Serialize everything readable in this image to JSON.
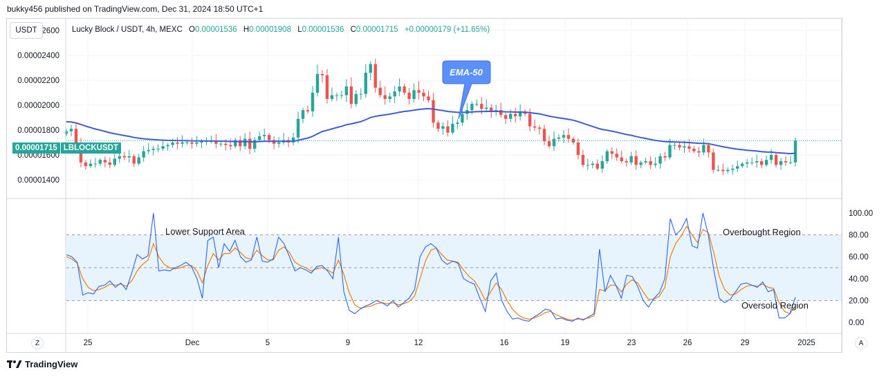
{
  "header": {
    "published": "bukky456 published on TradingView.com, Dec 31, 2024 18:50 UTC+1"
  },
  "unit": "USDT",
  "legend": {
    "title": "Lucky Block / USDT, 4h, MEXC",
    "o_label": "O",
    "o": "0.00001536",
    "h_label": "H",
    "h": "0.00001908",
    "l_label": "L",
    "l": "0.00001536",
    "c_label": "C",
    "c": "0.00001715",
    "change": "+0.00000179 (+11.65%)"
  },
  "last_price": {
    "value": "0.00001715",
    "symbol": "LBLOCKUSDT"
  },
  "annotations": {
    "ema": "EMA-50",
    "lower_support": "Lower Support Area",
    "overbought": "Overbought Region",
    "oversold": "Oversold Region"
  },
  "footer": {
    "brand": "TradingView"
  },
  "buttons": {
    "left": "Z",
    "right": "A"
  },
  "colors": {
    "up": "#26a69a",
    "down": "#ef5350",
    "ema": "#2962ff",
    "rsi": "#2962ff",
    "rsi_ma": "#f57c00",
    "band": "#e3f2fd",
    "callout": "#5b8ff9"
  },
  "chart_data": [
    {
      "type": "candlestick",
      "title": "Lucky Block / USDT, 4h, MEXC",
      "x_ticks": [
        "25",
        "Dec",
        "5",
        "9",
        "12",
        "16",
        "19",
        "23",
        "26",
        "29",
        "2025"
      ],
      "y_ticks": [
        "0.00002600",
        "0.00002400",
        "0.00002200",
        "0.00002000",
        "0.00001800",
        "0.00001600",
        "0.00001400"
      ],
      "ylim": [
        1.25e-05,
        2.7e-05
      ],
      "last_close": 1.715e-05,
      "close": [
        1.79e-05,
        1.81e-05,
        1.68e-05,
        1.54e-05,
        1.51e-05,
        1.53e-05,
        1.53e-05,
        1.56e-05,
        1.54e-05,
        1.52e-05,
        1.57e-05,
        1.59e-05,
        1.58e-05,
        1.59e-05,
        1.53e-05,
        1.58e-05,
        1.63e-05,
        1.64e-05,
        1.65e-05,
        1.65e-05,
        1.67e-05,
        1.68e-05,
        1.7e-05,
        1.69e-05,
        1.7e-05,
        1.7e-05,
        1.69e-05,
        1.7e-05,
        1.71e-05,
        1.71e-05,
        1.71e-05,
        1.69e-05,
        1.69e-05,
        1.68e-05,
        1.67e-05,
        1.72e-05,
        1.67e-05,
        1.73e-05,
        1.65e-05,
        1.72e-05,
        1.75e-05,
        1.76e-05,
        1.72e-05,
        1.69e-05,
        1.7e-05,
        1.72e-05,
        1.7e-05,
        1.74e-05,
        1.89e-05,
        1.96e-05,
        1.95e-05,
        2.1e-05,
        2.25e-05,
        2.24e-05,
        2.05e-05,
        2.08e-05,
        2.08e-05,
        2.08e-05,
        2.15e-05,
        2.01e-05,
        2.09e-05,
        2.09e-05,
        2.26e-05,
        2.33e-05,
        2.14e-05,
        2.08e-05,
        2.05e-05,
        2.07e-05,
        2.11e-05,
        2.15e-05,
        2.1e-05,
        2.05e-05,
        2.12e-05,
        2.1e-05,
        2.07e-05,
        2.04e-05,
        1.86e-05,
        1.81e-05,
        1.83e-05,
        1.78e-05,
        1.85e-05,
        1.86e-05,
        1.93e-05,
        1.96e-05,
        2.01e-05,
        2.01e-05,
        1.97e-05,
        1.98e-05,
        1.95e-05,
        1.96e-05,
        1.92e-05,
        1.89e-05,
        1.93e-05,
        1.91e-05,
        1.94e-05,
        1.93e-05,
        1.83e-05,
        1.82e-05,
        1.81e-05,
        1.71e-05,
        1.67e-05,
        1.73e-05,
        1.74e-05,
        1.76e-05,
        1.73e-05,
        1.7e-05,
        1.6e-05,
        1.52e-05,
        1.52e-05,
        1.53e-05,
        1.49e-05,
        1.55e-05,
        1.63e-05,
        1.61e-05,
        1.58e-05,
        1.55e-05,
        1.54e-05,
        1.59e-05,
        1.52e-05,
        1.54e-05,
        1.55e-05,
        1.52e-05,
        1.53e-05,
        1.59e-05,
        1.58e-05,
        1.68e-05,
        1.68e-05,
        1.66e-05,
        1.67e-05,
        1.65e-05,
        1.63e-05,
        1.62e-05,
        1.68e-05,
        1.62e-05,
        1.48e-05,
        1.48e-05,
        1.47e-05,
        1.48e-05,
        1.49e-05,
        1.51e-05,
        1.53e-05,
        1.54e-05,
        1.54e-05,
        1.55e-05,
        1.52e-05,
        1.56e-05,
        1.6e-05,
        1.52e-05,
        1.55e-05,
        1.54e-05,
        1.54e-05,
        1.715e-05
      ],
      "ema_label": "EMA-50"
    },
    {
      "type": "line",
      "title": "",
      "series": [
        {
          "values": [
            62,
            60,
            55,
            25,
            27,
            26,
            33,
            34,
            38,
            32,
            36,
            30,
            45,
            62,
            58,
            61,
            100,
            47,
            48,
            47,
            50,
            52,
            55,
            51,
            40,
            22,
            75,
            78,
            50,
            72,
            65,
            75,
            60,
            55,
            57,
            78,
            56,
            55,
            58,
            78,
            72,
            60,
            47,
            50,
            48,
            45,
            51,
            52,
            47,
            40,
            78,
            28,
            11,
            8,
            12,
            15,
            17,
            20,
            18,
            15,
            20,
            14,
            18,
            22,
            30,
            60,
            69,
            72,
            68,
            57,
            53,
            56,
            54,
            40,
            37,
            35,
            22,
            10,
            38,
            45,
            20,
            10,
            3,
            4,
            2,
            1,
            5,
            8,
            12,
            11,
            3,
            4,
            2,
            1,
            4,
            2,
            5,
            8,
            67,
            28,
            43,
            34,
            22,
            43,
            42,
            33,
            20,
            14,
            22,
            27,
            40,
            95,
            80,
            85,
            95,
            70,
            68,
            100,
            80,
            48,
            22,
            18,
            21,
            28,
            35,
            36,
            34,
            32,
            37,
            28,
            30,
            4,
            4,
            8,
            23
          ]
        },
        {
          "values": [
            60,
            58,
            54,
            40,
            32,
            29,
            30,
            32,
            35,
            34,
            35,
            33,
            38,
            47,
            53,
            57,
            72,
            60,
            53,
            50,
            49,
            50,
            52,
            52,
            47,
            36,
            52,
            63,
            57,
            63,
            63,
            68,
            64,
            59,
            58,
            66,
            61,
            57,
            57,
            66,
            69,
            64,
            55,
            52,
            50,
            47,
            49,
            50,
            48,
            45,
            57,
            44,
            27,
            16,
            13,
            14,
            15,
            17,
            18,
            17,
            18,
            16,
            17,
            19,
            24,
            40,
            56,
            66,
            68,
            62,
            57,
            56,
            55,
            48,
            42,
            38,
            30,
            20,
            28,
            36,
            30,
            20,
            12,
            7,
            4,
            3,
            4,
            6,
            9,
            10,
            7,
            5,
            3,
            2,
            3,
            3,
            4,
            6,
            30,
            29,
            34,
            34,
            28,
            35,
            39,
            36,
            28,
            21,
            21,
            24,
            32,
            60,
            72,
            79,
            88,
            80,
            73,
            85,
            82,
            64,
            42,
            30,
            25,
            26,
            30,
            33,
            34,
            33,
            35,
            32,
            31,
            18,
            10,
            8,
            15
          ]
        }
      ],
      "y_ticks": [
        "100.00",
        "80.00",
        "60.00",
        "40.00",
        "20.00",
        "0.00"
      ],
      "ylim": [
        0,
        100
      ],
      "bands": [
        80,
        50,
        20
      ]
    }
  ]
}
